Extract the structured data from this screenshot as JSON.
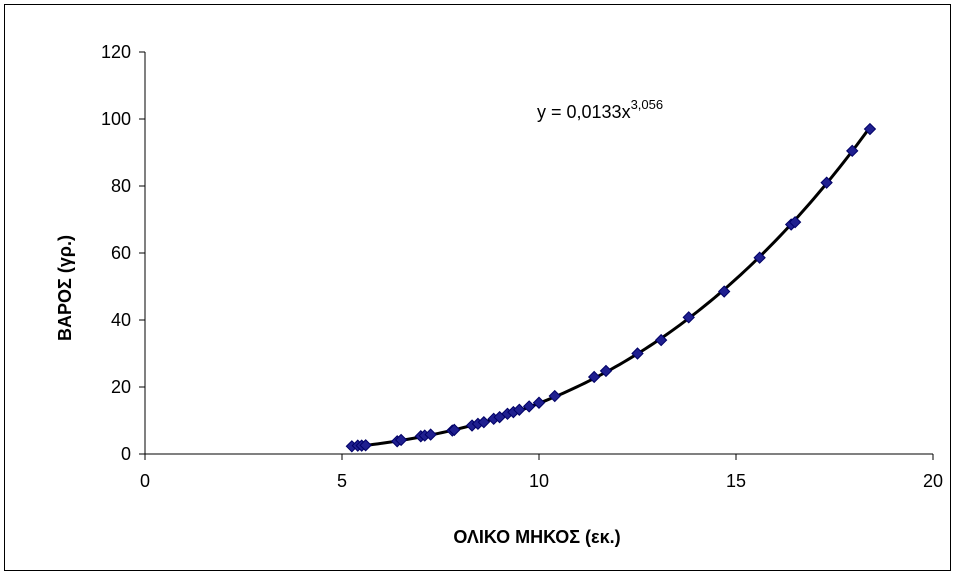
{
  "chart_data": {
    "type": "scatter",
    "title": "",
    "xlabel": "ΟΛΙΚΟ ΜΗΚΟΣ (εκ.)",
    "ylabel": "ΒΑΡΟΣ (γρ.)",
    "xlim": [
      0,
      20
    ],
    "ylim": [
      0,
      120
    ],
    "x_ticks": [
      0,
      5,
      10,
      15,
      20
    ],
    "y_ticks": [
      0,
      20,
      40,
      60,
      80,
      100,
      120
    ],
    "grid": false,
    "legend": "none",
    "marker_color": "#1f1f8f",
    "trend_color": "#000000",
    "trendline": {
      "type": "power",
      "a": 0.0133,
      "b": 3.056
    },
    "equation": {
      "base": "y = 0,0133x",
      "exponent": "3,056"
    },
    "points": {
      "x": [
        5.25,
        5.4,
        5.5,
        5.6,
        6.4,
        6.5,
        7.0,
        7.1,
        7.25,
        7.8,
        7.85,
        8.3,
        8.45,
        8.6,
        8.85,
        9.0,
        9.2,
        9.35,
        9.5,
        9.75,
        10.0,
        10.4,
        11.4,
        11.7,
        12.5,
        13.1,
        13.8,
        14.7,
        15.6,
        16.4,
        16.5,
        17.3,
        17.95,
        18.4
      ],
      "y": [
        2.3,
        2.5,
        2.5,
        2.6,
        3.8,
        4.2,
        5.3,
        5.5,
        5.8,
        7.0,
        7.2,
        8.5,
        9.0,
        9.5,
        10.5,
        11.0,
        12.0,
        12.5,
        13.2,
        14.2,
        15.3,
        17.3,
        23.0,
        24.8,
        30.0,
        34.0,
        40.8,
        48.5,
        58.6,
        68.5,
        69.2,
        81.0,
        90.5,
        97.0
      ]
    }
  }
}
